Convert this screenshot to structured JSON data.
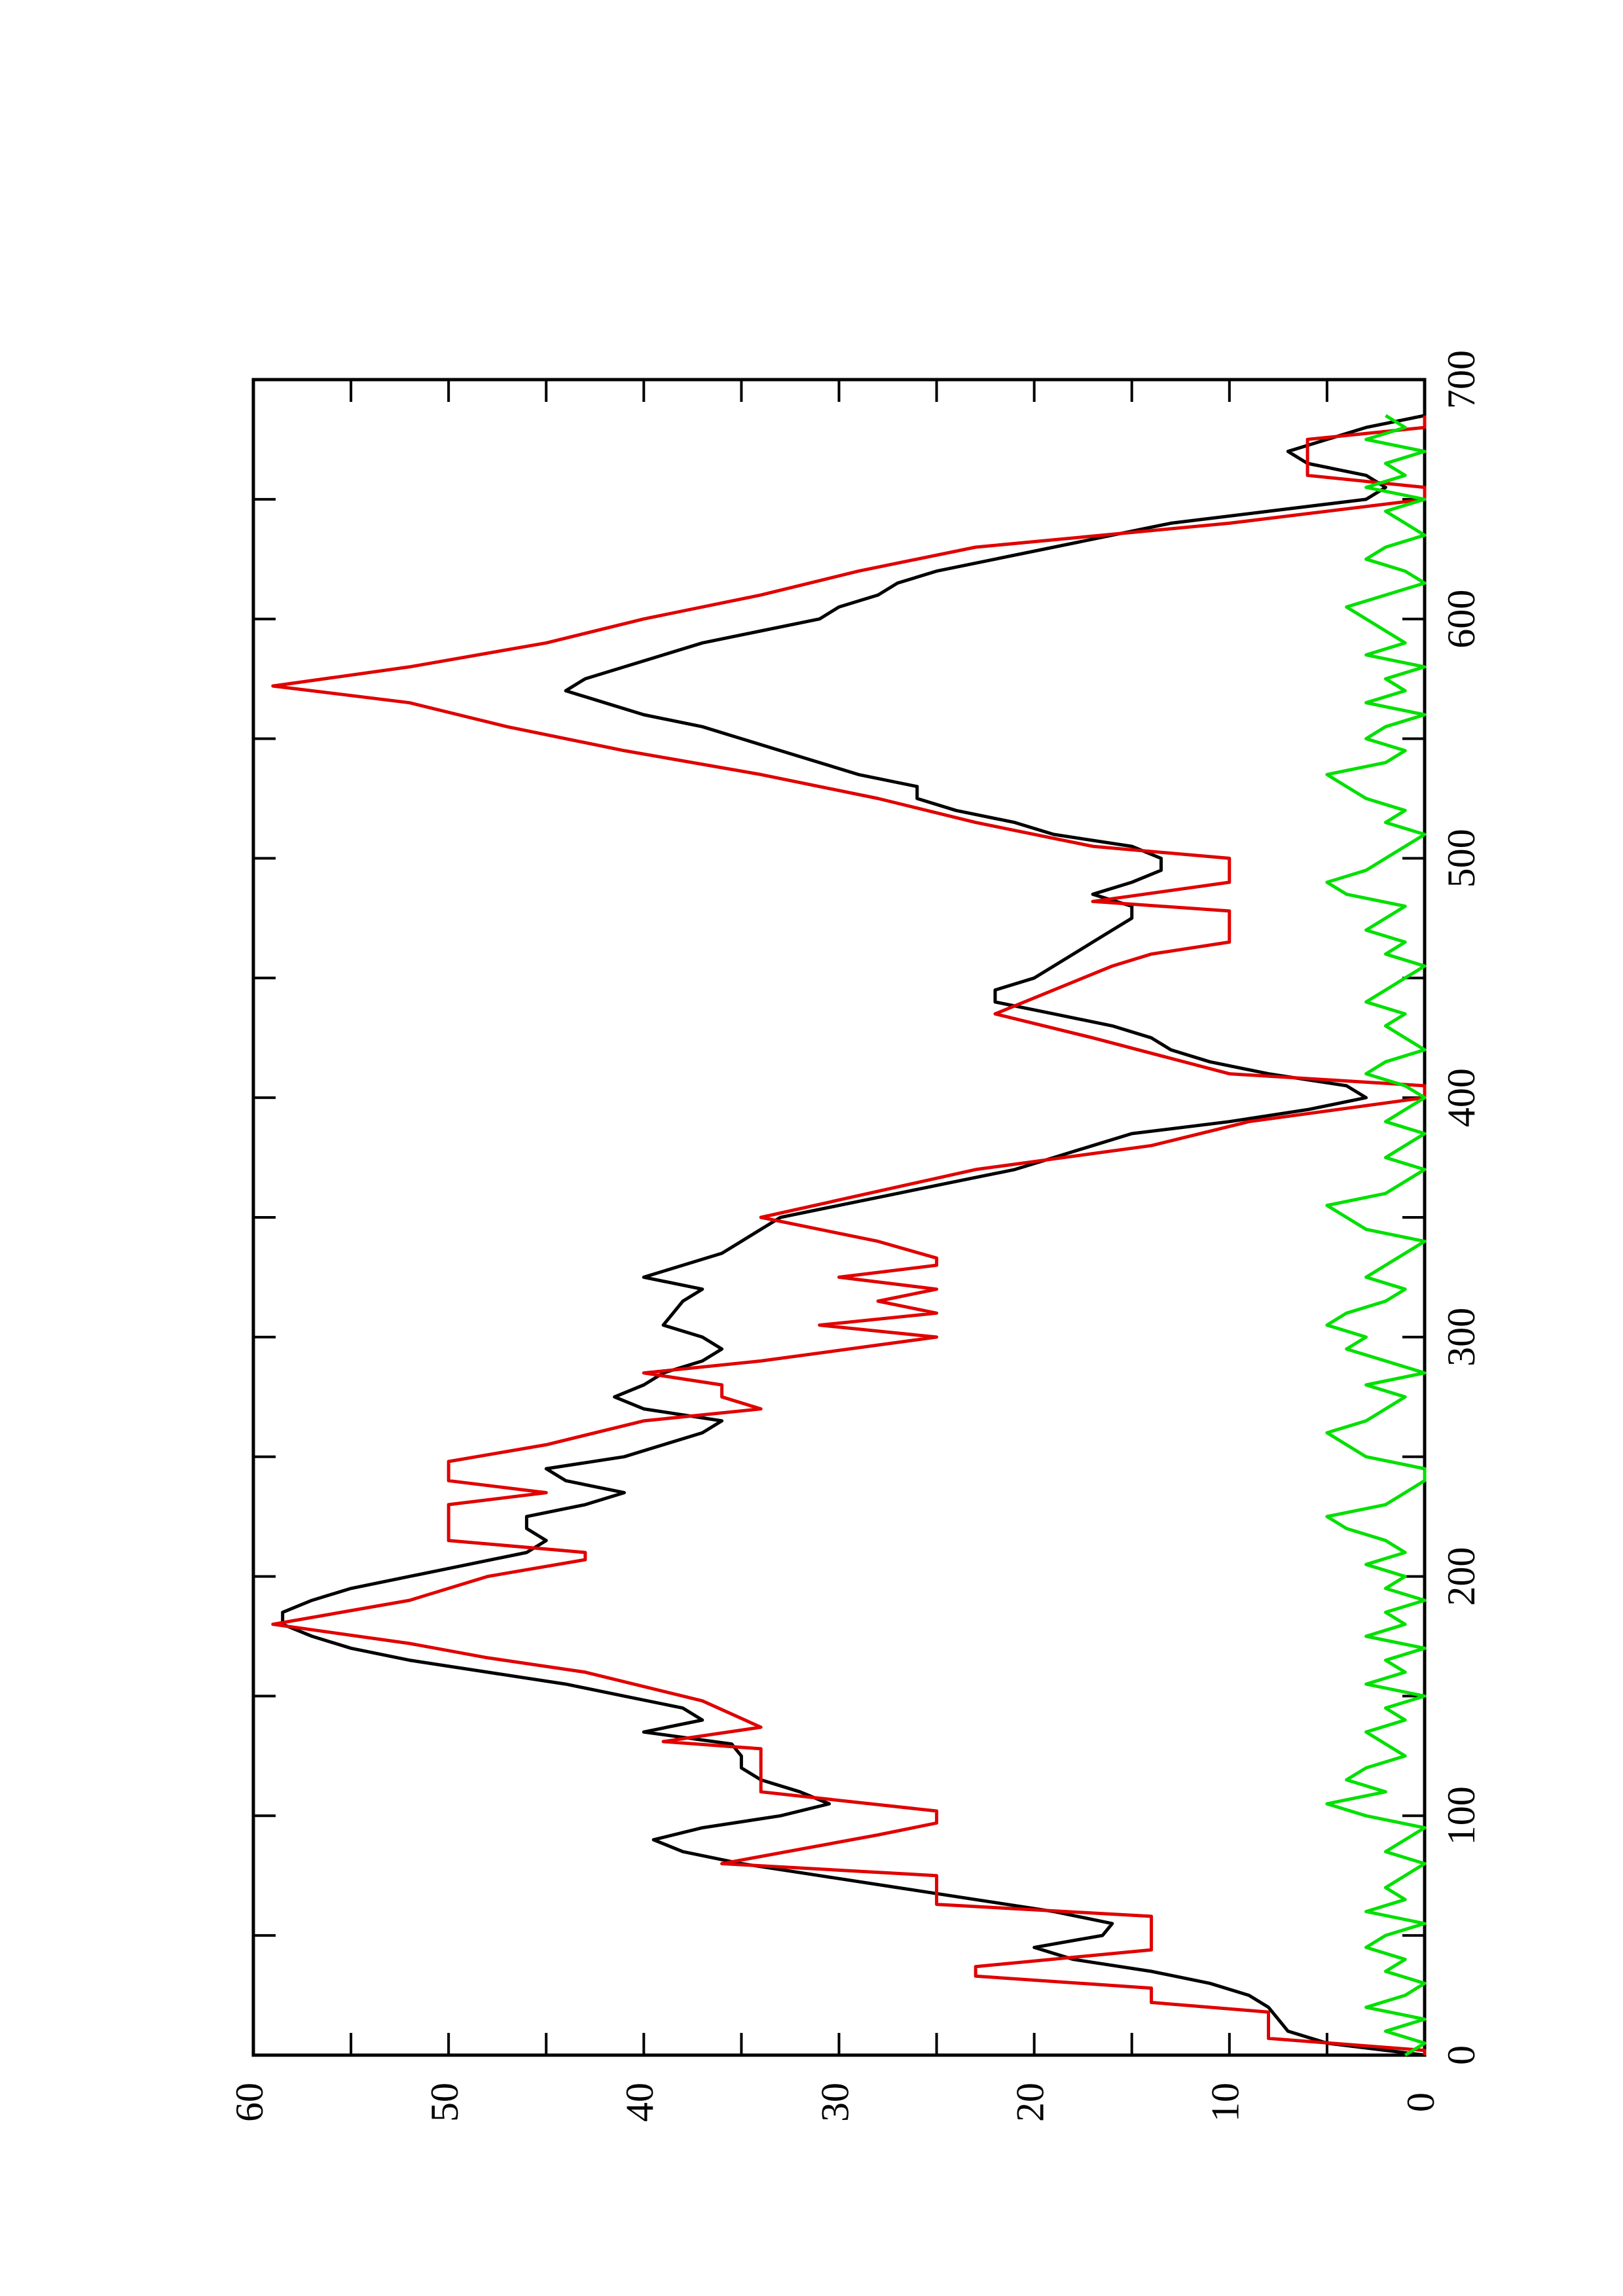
{
  "chart_data": {
    "type": "line",
    "x": [
      0,
      5,
      10,
      15,
      20,
      25,
      30,
      35,
      40,
      45,
      50,
      55,
      60,
      65,
      70,
      75,
      80,
      85,
      90,
      95,
      100,
      105,
      110,
      115,
      120,
      125,
      130,
      135,
      140,
      145,
      150,
      155,
      160,
      165,
      170,
      175,
      180,
      185,
      190,
      195,
      200,
      205,
      210,
      215,
      220,
      225,
      230,
      235,
      240,
      245,
      250,
      255,
      260,
      265,
      270,
      275,
      280,
      285,
      290,
      295,
      300,
      305,
      310,
      315,
      320,
      325,
      330,
      335,
      340,
      345,
      350,
      355,
      360,
      365,
      370,
      375,
      380,
      385,
      390,
      395,
      400,
      405,
      410,
      415,
      420,
      425,
      430,
      435,
      440,
      445,
      450,
      455,
      460,
      465,
      470,
      475,
      480,
      485,
      490,
      495,
      500,
      505,
      510,
      515,
      520,
      525,
      530,
      535,
      540,
      545,
      550,
      555,
      560,
      565,
      570,
      575,
      580,
      585,
      590,
      595,
      600,
      605,
      610,
      615,
      620,
      625,
      630,
      635,
      640,
      645,
      650,
      655,
      660,
      665,
      670,
      675,
      680,
      685
    ],
    "series": [
      {
        "color": "#000000",
        "values": [
          0,
          5,
          7,
          7.5,
          8,
          9,
          11,
          14,
          18,
          20,
          16.5,
          16,
          19,
          23,
          27,
          31,
          35,
          38,
          39.5,
          37,
          33,
          30.5,
          32,
          34,
          35,
          35,
          35.5,
          40,
          37,
          38,
          41,
          44,
          48,
          52,
          55,
          57,
          58.5,
          58.5,
          57,
          55,
          52,
          49,
          46,
          45,
          46,
          46,
          43,
          41,
          44,
          45,
          41,
          39,
          37,
          36,
          40,
          41.5,
          40,
          39,
          37,
          36,
          37,
          39,
          38.5,
          38,
          37,
          40,
          38,
          36,
          35,
          34,
          33,
          30,
          27,
          24,
          21,
          19,
          17,
          15,
          10,
          6,
          3,
          4,
          8,
          11,
          13,
          14,
          16,
          19,
          22,
          22,
          20,
          19,
          18,
          17,
          16,
          15,
          15,
          17,
          15,
          13.5,
          13.5,
          15,
          19,
          21,
          24,
          26,
          26,
          29,
          31,
          33,
          35,
          37,
          40,
          42,
          44,
          43,
          41,
          39,
          37,
          34,
          31,
          30,
          28,
          27,
          25,
          22,
          19,
          16,
          13,
          8,
          3,
          2,
          3,
          6,
          7,
          5,
          3,
          0
        ]
      },
      {
        "color": "#e00000",
        "x": [
          0,
          2,
          7,
          18,
          22,
          28,
          33,
          37,
          44,
          58,
          63,
          75,
          80,
          92,
          97,
          102,
          110,
          128,
          131,
          137,
          148,
          160,
          166,
          172,
          180,
          190,
          200,
          207,
          210,
          215,
          230,
          235,
          240,
          248,
          255,
          265,
          270,
          275,
          280,
          285,
          290,
          300,
          305,
          310,
          315,
          320,
          325,
          330,
          333,
          340,
          350,
          370,
          380,
          390,
          400,
          405,
          410,
          425,
          435,
          455,
          460,
          465,
          478,
          482,
          490,
          500,
          505,
          515,
          525,
          535,
          545,
          555,
          565,
          572,
          580,
          590,
          600,
          610,
          620,
          630,
          640,
          650,
          655,
          660,
          675,
          680,
          685
        ],
        "values": [
          0,
          0,
          8,
          8,
          14,
          14,
          23,
          23,
          14,
          14,
          25,
          25,
          36,
          28,
          25,
          25,
          34,
          34,
          39,
          34,
          37,
          43,
          48,
          52,
          59,
          52,
          48,
          43,
          43,
          50,
          50,
          45,
          50,
          50,
          45,
          40,
          34,
          36,
          36,
          40,
          34,
          25,
          31,
          25,
          28,
          25,
          30,
          25,
          25,
          28,
          34,
          23,
          14,
          9,
          0,
          0,
          10,
          17,
          22,
          16,
          14,
          10,
          10,
          17,
          10,
          10,
          17,
          23,
          28,
          34,
          41,
          47,
          52,
          59,
          52,
          45,
          40,
          34,
          29,
          23,
          10,
          0,
          0,
          6,
          6,
          0,
          0
        ]
      },
      {
        "color": "#00e000",
        "values": [
          1,
          0,
          2,
          0,
          3,
          1,
          0,
          2,
          1,
          3,
          2,
          0,
          3,
          1,
          2,
          1,
          0,
          2,
          1,
          0,
          3,
          5,
          2,
          4,
          3,
          1,
          2,
          3,
          1,
          2,
          0,
          3,
          1,
          2,
          0,
          3,
          1,
          2,
          0,
          2,
          1,
          3,
          1,
          2,
          4,
          5,
          2,
          1,
          0,
          0,
          3,
          4,
          5,
          3,
          2,
          1,
          3,
          0,
          2,
          4,
          3,
          5,
          4,
          2,
          1,
          3,
          2,
          1,
          0,
          3,
          4,
          5,
          2,
          1,
          0,
          2,
          1,
          0,
          2,
          1,
          0,
          1,
          3,
          2,
          0,
          1,
          2,
          1,
          3,
          2,
          1,
          0,
          2,
          1,
          3,
          2,
          1,
          4,
          5,
          3,
          2,
          1,
          0,
          2,
          1,
          3,
          4,
          5,
          2,
          1,
          3,
          2,
          0,
          3,
          1,
          2,
          0,
          3,
          1,
          2,
          3,
          4,
          2,
          0,
          1,
          3,
          2,
          0,
          1,
          2,
          0,
          3,
          1,
          2,
          0,
          3,
          1,
          2
        ]
      }
    ],
    "xlim": [
      0,
      700
    ],
    "xticks": [
      0,
      100,
      200,
      300,
      400,
      500,
      600,
      700
    ],
    "xminorticks": [
      50,
      150,
      250,
      350,
      450,
      550,
      650
    ],
    "ylim": [
      0,
      60
    ],
    "yticks": [
      0,
      10,
      20,
      30,
      40,
      50,
      60
    ],
    "yminorticks": [
      5,
      15,
      25,
      35,
      45,
      55
    ]
  }
}
